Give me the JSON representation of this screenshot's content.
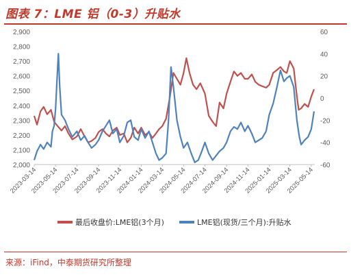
{
  "header": {
    "title": "图表 7：LME 铝（0-3）升贴水"
  },
  "footer": {
    "source": "来源：iFind，中泰期货研究所整理"
  },
  "chart_data": {
    "type": "line",
    "title": "",
    "left_axis": {
      "ylim": [
        2000,
        2900
      ],
      "ticks": [
        "2,000",
        "2,100",
        "2,200",
        "2,300",
        "2,400",
        "2,500",
        "2,600",
        "2,700",
        "2,800",
        "2,900"
      ]
    },
    "right_axis": {
      "ylim": [
        -60,
        60
      ],
      "ticks": [
        "-60",
        "-40",
        "-20",
        "0",
        "20",
        "40",
        "60"
      ]
    },
    "x_ticks": [
      "2023-03-14",
      "2023-05-14",
      "2023-07-14",
      "2023-09-14",
      "2023-11-14",
      "2024-01-14",
      "2024-03-14",
      "2024-05-14",
      "2024-07-14",
      "2024-09-14",
      "2024-11-14",
      "2025-01-14",
      "2025-03-14",
      "2025-05-14"
    ],
    "legend_placement": "bottom",
    "grid": false,
    "series": [
      {
        "name": "最后收盘价:LME铝(3个月)",
        "axis": "left",
        "color": "#c0504d",
        "points": [
          [
            "2023-03-14",
            2330
          ],
          [
            "2023-03-22",
            2270
          ],
          [
            "2023-04-01",
            2360
          ],
          [
            "2023-04-10",
            2390
          ],
          [
            "2023-04-20",
            2340
          ],
          [
            "2023-05-01",
            2370
          ],
          [
            "2023-05-10",
            2290
          ],
          [
            "2023-05-20",
            2260
          ],
          [
            "2023-05-31",
            2230
          ],
          [
            "2023-06-10",
            2260
          ],
          [
            "2023-06-20",
            2210
          ],
          [
            "2023-07-01",
            2170
          ],
          [
            "2023-07-14",
            2190
          ],
          [
            "2023-07-25",
            2240
          ],
          [
            "2023-08-05",
            2190
          ],
          [
            "2023-08-15",
            2150
          ],
          [
            "2023-08-25",
            2160
          ],
          [
            "2023-09-05",
            2180
          ],
          [
            "2023-09-14",
            2220
          ],
          [
            "2023-09-25",
            2240
          ],
          [
            "2023-10-05",
            2210
          ],
          [
            "2023-10-15",
            2190
          ],
          [
            "2023-10-25",
            2230
          ],
          [
            "2023-11-05",
            2250
          ],
          [
            "2023-11-14",
            2200
          ],
          [
            "2023-11-25",
            2210
          ],
          [
            "2023-12-05",
            2150
          ],
          [
            "2023-12-15",
            2180
          ],
          [
            "2023-12-25",
            2250
          ],
          [
            "2024-01-05",
            2210
          ],
          [
            "2024-01-14",
            2250
          ],
          [
            "2024-01-25",
            2200
          ],
          [
            "2024-02-05",
            2220
          ],
          [
            "2024-02-15",
            2180
          ],
          [
            "2024-02-25",
            2210
          ],
          [
            "2024-03-05",
            2240
          ],
          [
            "2024-03-14",
            2260
          ],
          [
            "2024-03-25",
            2310
          ],
          [
            "2024-04-05",
            2460
          ],
          [
            "2024-04-15",
            2620
          ],
          [
            "2024-04-25",
            2580
          ],
          [
            "2024-05-05",
            2540
          ],
          [
            "2024-05-14",
            2620
          ],
          [
            "2024-05-22",
            2720
          ],
          [
            "2024-05-31",
            2620
          ],
          [
            "2024-06-10",
            2540
          ],
          [
            "2024-06-20",
            2510
          ],
          [
            "2024-07-01",
            2550
          ],
          [
            "2024-07-14",
            2480
          ],
          [
            "2024-07-25",
            2330
          ],
          [
            "2024-08-05",
            2290
          ],
          [
            "2024-08-15",
            2260
          ],
          [
            "2024-08-25",
            2420
          ],
          [
            "2024-09-05",
            2380
          ],
          [
            "2024-09-14",
            2480
          ],
          [
            "2024-09-25",
            2560
          ],
          [
            "2024-10-05",
            2630
          ],
          [
            "2024-10-15",
            2600
          ],
          [
            "2024-10-25",
            2620
          ],
          [
            "2024-11-05",
            2580
          ],
          [
            "2024-11-14",
            2580
          ],
          [
            "2024-11-25",
            2610
          ],
          [
            "2024-12-05",
            2560
          ],
          [
            "2024-12-15",
            2540
          ],
          [
            "2024-12-25",
            2530
          ],
          [
            "2025-01-05",
            2520
          ],
          [
            "2025-01-14",
            2540
          ],
          [
            "2025-01-25",
            2620
          ],
          [
            "2025-02-05",
            2640
          ],
          [
            "2025-02-15",
            2660
          ],
          [
            "2025-02-25",
            2630
          ],
          [
            "2025-03-05",
            2620
          ],
          [
            "2025-03-14",
            2700
          ],
          [
            "2025-03-25",
            2650
          ],
          [
            "2025-04-03",
            2460
          ],
          [
            "2025-04-08",
            2370
          ],
          [
            "2025-04-15",
            2380
          ],
          [
            "2025-04-25",
            2410
          ],
          [
            "2025-05-05",
            2390
          ],
          [
            "2025-05-14",
            2460
          ],
          [
            "2025-05-22",
            2510
          ]
        ]
      },
      {
        "name": "LME铝(现货/三个月):升贴水",
        "axis": "right",
        "color": "#4f81bd",
        "points": [
          [
            "2023-03-14",
            -56
          ],
          [
            "2023-03-22",
            -48
          ],
          [
            "2023-04-01",
            -42
          ],
          [
            "2023-04-10",
            -46
          ],
          [
            "2023-04-20",
            -40
          ],
          [
            "2023-05-01",
            -44
          ],
          [
            "2023-05-05",
            -30
          ],
          [
            "2023-05-10",
            -25
          ],
          [
            "2023-05-14",
            -10
          ],
          [
            "2023-05-18",
            15
          ],
          [
            "2023-05-22",
            40
          ],
          [
            "2023-05-26",
            10
          ],
          [
            "2023-05-31",
            -15
          ],
          [
            "2023-06-10",
            -20
          ],
          [
            "2023-06-20",
            -28
          ],
          [
            "2023-07-01",
            -35
          ],
          [
            "2023-07-14",
            -30
          ],
          [
            "2023-07-25",
            -38
          ],
          [
            "2023-08-05",
            -34
          ],
          [
            "2023-08-15",
            -40
          ],
          [
            "2023-08-25",
            -45
          ],
          [
            "2023-09-05",
            -42
          ],
          [
            "2023-09-14",
            -38
          ],
          [
            "2023-09-25",
            -30
          ],
          [
            "2023-10-05",
            -25
          ],
          [
            "2023-10-15",
            -20
          ],
          [
            "2023-10-25",
            -32
          ],
          [
            "2023-11-05",
            -28
          ],
          [
            "2023-11-14",
            -40
          ],
          [
            "2023-11-25",
            -34
          ],
          [
            "2023-12-05",
            -22
          ],
          [
            "2023-12-15",
            -20
          ],
          [
            "2023-12-25",
            -35
          ],
          [
            "2024-01-05",
            -38
          ],
          [
            "2024-01-14",
            -28
          ],
          [
            "2024-01-25",
            -36
          ],
          [
            "2024-02-05",
            -30
          ],
          [
            "2024-02-15",
            -40
          ],
          [
            "2024-02-25",
            -50
          ],
          [
            "2024-03-05",
            -56
          ],
          [
            "2024-03-14",
            -54
          ],
          [
            "2024-03-25",
            -50
          ],
          [
            "2024-04-01",
            -20
          ],
          [
            "2024-04-08",
            28
          ],
          [
            "2024-04-15",
            10
          ],
          [
            "2024-04-25",
            -20
          ],
          [
            "2024-05-05",
            -35
          ],
          [
            "2024-05-14",
            -45
          ],
          [
            "2024-05-25",
            -40
          ],
          [
            "2024-06-05",
            -50
          ],
          [
            "2024-06-15",
            -58
          ],
          [
            "2024-06-25",
            -56
          ],
          [
            "2024-07-05",
            -48
          ],
          [
            "2024-07-14",
            -40
          ],
          [
            "2024-07-25",
            -50
          ],
          [
            "2024-08-05",
            -56
          ],
          [
            "2024-08-15",
            -52
          ],
          [
            "2024-08-25",
            -48
          ],
          [
            "2024-09-05",
            -45
          ],
          [
            "2024-09-14",
            -40
          ],
          [
            "2024-09-25",
            -30
          ],
          [
            "2024-10-05",
            -26
          ],
          [
            "2024-10-15",
            -28
          ],
          [
            "2024-10-25",
            -22
          ],
          [
            "2024-11-05",
            -30
          ],
          [
            "2024-11-14",
            -25
          ],
          [
            "2024-11-25",
            -32
          ],
          [
            "2024-12-05",
            -40
          ],
          [
            "2024-12-15",
            -38
          ],
          [
            "2024-12-25",
            -36
          ],
          [
            "2025-01-05",
            -30
          ],
          [
            "2025-01-14",
            -15
          ],
          [
            "2025-01-25",
            -5
          ],
          [
            "2025-02-05",
            10
          ],
          [
            "2025-02-15",
            25
          ],
          [
            "2025-02-25",
            15
          ],
          [
            "2025-03-05",
            18
          ],
          [
            "2025-03-14",
            20
          ],
          [
            "2025-03-25",
            10
          ],
          [
            "2025-04-03",
            -20
          ],
          [
            "2025-04-10",
            -35
          ],
          [
            "2025-04-15",
            -42
          ],
          [
            "2025-04-25",
            -38
          ],
          [
            "2025-05-05",
            -35
          ],
          [
            "2025-05-14",
            -28
          ],
          [
            "2025-05-22",
            -12
          ]
        ]
      }
    ]
  }
}
